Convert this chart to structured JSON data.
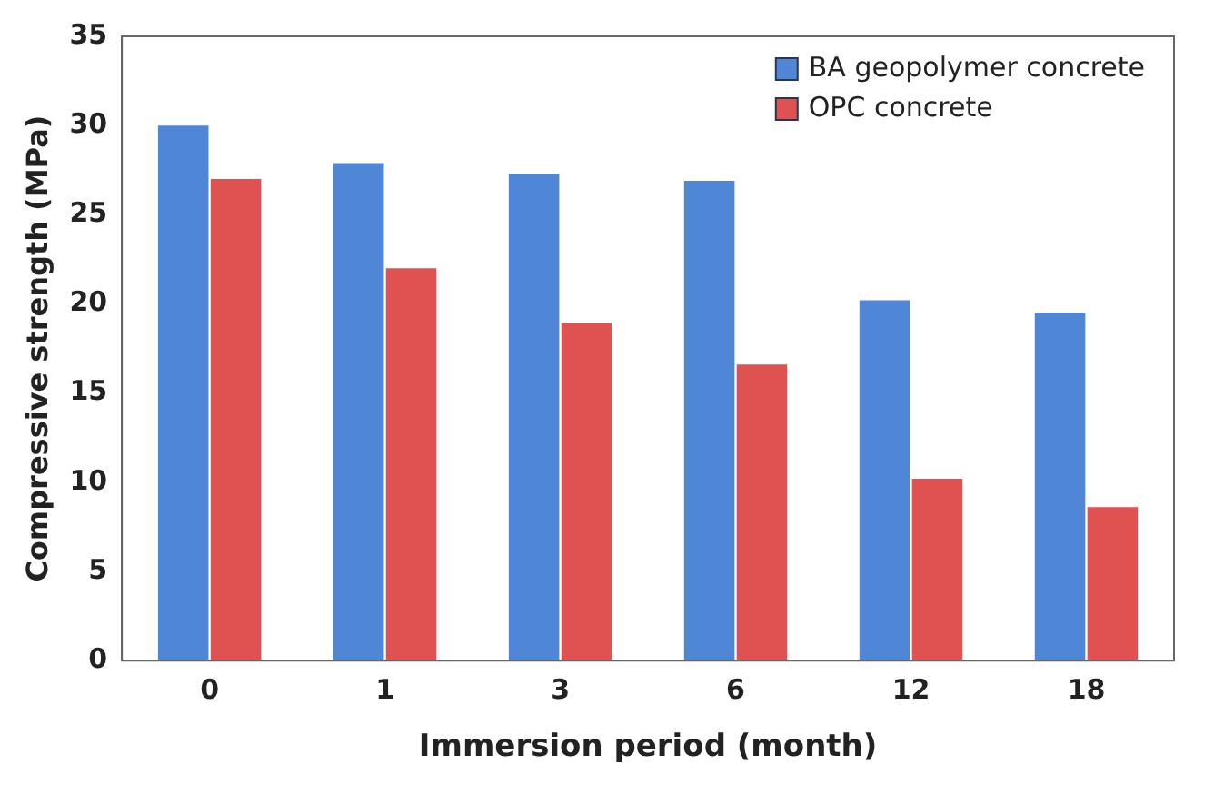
{
  "chart_data": {
    "type": "bar",
    "xlabel": "Immersion period (month)",
    "ylabel": "Compressive strength (MPa)",
    "categories": [
      "0",
      "1",
      "3",
      "6",
      "12",
      "18"
    ],
    "series": [
      {
        "name": "BA geopolymer concrete",
        "color": "#4f86d6",
        "values": [
          30,
          27.9,
          27.3,
          26.9,
          20.2,
          19.5
        ]
      },
      {
        "name": "OPC concrete",
        "color": "#e05252",
        "values": [
          27,
          22,
          18.9,
          16.6,
          10.2,
          8.6
        ]
      }
    ],
    "ylim": [
      0,
      35
    ],
    "yticks": [
      0,
      5,
      10,
      15,
      20,
      25,
      30,
      35
    ],
    "grid": false,
    "legend": "top right"
  }
}
